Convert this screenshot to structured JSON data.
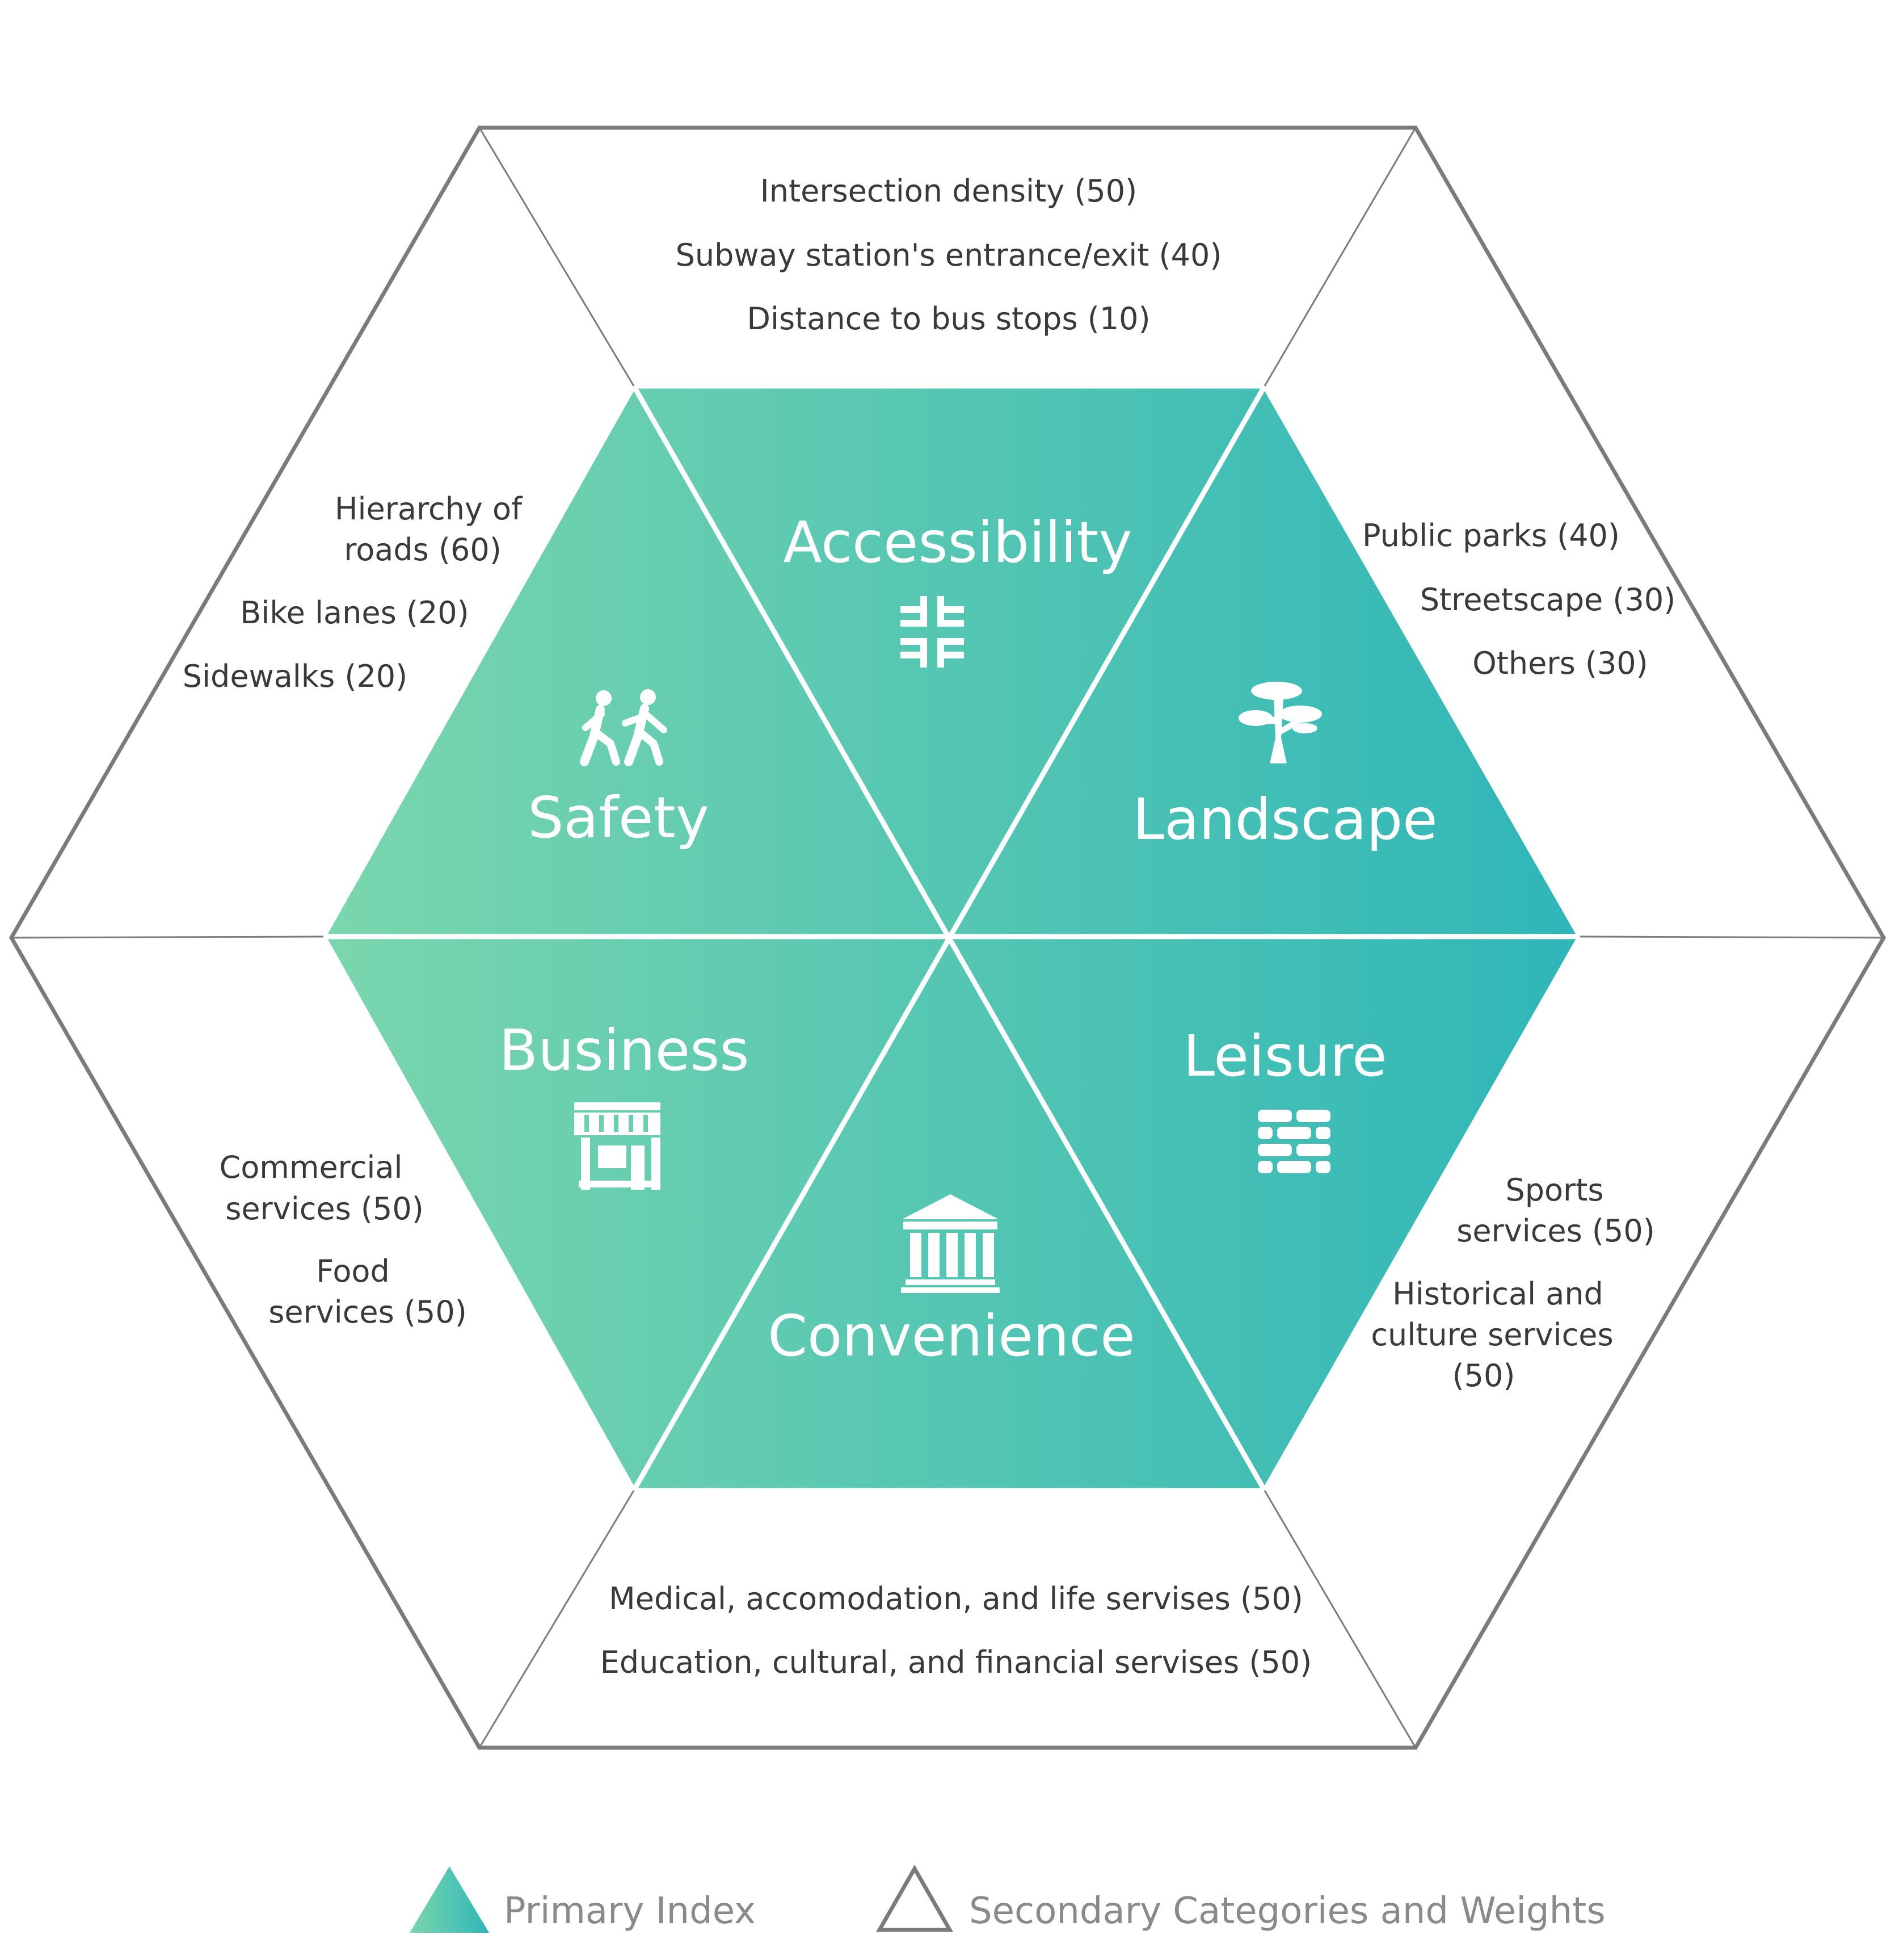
{
  "colors": {
    "primary_gradient_start": "#7ad6ad",
    "primary_gradient_end": "#2fb6b8",
    "outline": "#7b7b7b",
    "text_dark": "#3a3a3a",
    "legend_text": "#8a8a8a"
  },
  "primary": {
    "accessibility": {
      "label": "Accessibility",
      "icon": "merge-arrows-icon"
    },
    "safety": {
      "label": "Safety",
      "icon": "pedestrians-icon"
    },
    "landscape": {
      "label": "Landscape",
      "icon": "tree-icon"
    },
    "business": {
      "label": "Business",
      "icon": "storefront-icon"
    },
    "leisure": {
      "label": "Leisure",
      "icon": "brick-wall-icon"
    },
    "convenience": {
      "label": "Convenience",
      "icon": "institution-building-icon"
    }
  },
  "secondary": {
    "accessibility": [
      "Intersection density (50)",
      "Subway station's entrance/exit (40)",
      "Distance to bus stops (10)"
    ],
    "safety": [
      "Hierarchy of",
      "roads (60)",
      "Bike lanes (20)",
      "Sidewalks (20)"
    ],
    "landscape": [
      "Public parks (40)",
      "Streetscape (30)",
      "Others (30)"
    ],
    "business": [
      "Commercial",
      "services (50)",
      "Food",
      "services (50)"
    ],
    "leisure": [
      "Sports",
      "services (50)",
      "Historical and",
      "culture services",
      "(50)"
    ],
    "convenience": [
      "Medical, accomodation, and life servises (50)",
      "Education, cultural, and financial servises (50)"
    ]
  },
  "legend": {
    "primary_label": "Primary Index",
    "secondary_label": "Secondary Categories and Weights"
  }
}
